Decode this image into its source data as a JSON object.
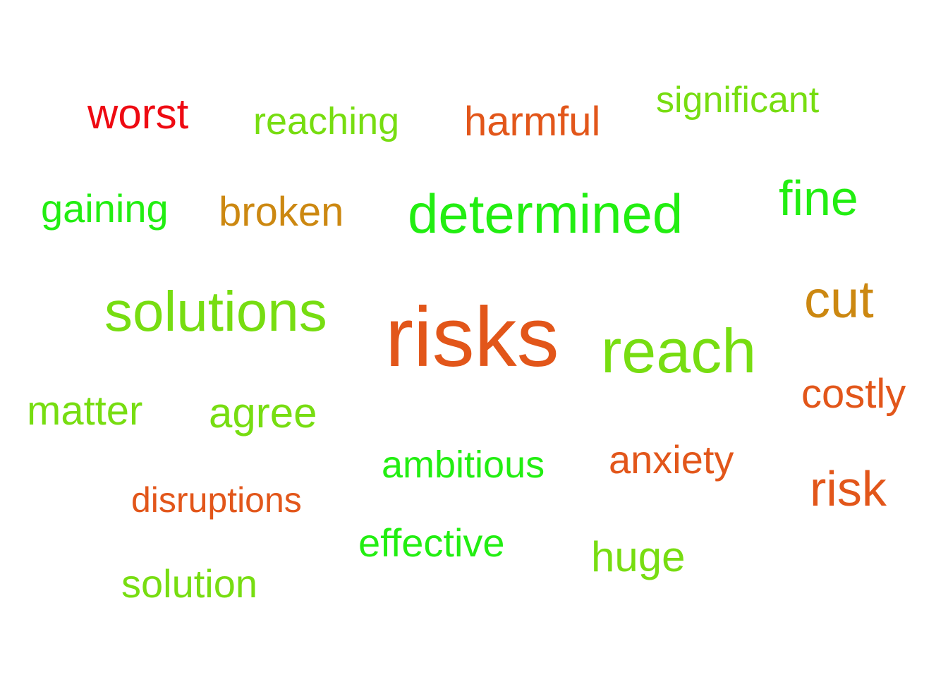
{
  "words": [
    {
      "id": "worst",
      "text": "worst",
      "color": "#ee0a12"
    },
    {
      "id": "reaching",
      "text": "reaching",
      "color": "#77dd11"
    },
    {
      "id": "harmful",
      "text": "harmful",
      "color": "#e2561a"
    },
    {
      "id": "significant",
      "text": "significant",
      "color": "#77dd11"
    },
    {
      "id": "gaining",
      "text": "gaining",
      "color": "#22ee11"
    },
    {
      "id": "broken",
      "text": "broken",
      "color": "#cc8811"
    },
    {
      "id": "determined",
      "text": "determined",
      "color": "#22ee11"
    },
    {
      "id": "fine",
      "text": "fine",
      "color": "#22ee11"
    },
    {
      "id": "solutions",
      "text": "solutions",
      "color": "#77dd11"
    },
    {
      "id": "risks",
      "text": "risks",
      "color": "#e2561a"
    },
    {
      "id": "reach",
      "text": "reach",
      "color": "#77dd11"
    },
    {
      "id": "cut",
      "text": "cut",
      "color": "#cc8811"
    },
    {
      "id": "costly",
      "text": "costly",
      "color": "#e2561a"
    },
    {
      "id": "matter",
      "text": "matter",
      "color": "#77dd11"
    },
    {
      "id": "agree",
      "text": "agree",
      "color": "#77dd11"
    },
    {
      "id": "ambitious",
      "text": "ambitious",
      "color": "#22ee11"
    },
    {
      "id": "anxiety",
      "text": "anxiety",
      "color": "#e2561a"
    },
    {
      "id": "risk",
      "text": "risk",
      "color": "#e2561a"
    },
    {
      "id": "disruptions",
      "text": "disruptions",
      "color": "#e2561a"
    },
    {
      "id": "effective",
      "text": "effective",
      "color": "#22ee11"
    },
    {
      "id": "huge",
      "text": "huge",
      "color": "#77dd11"
    },
    {
      "id": "solution",
      "text": "solution",
      "color": "#77dd11"
    }
  ]
}
